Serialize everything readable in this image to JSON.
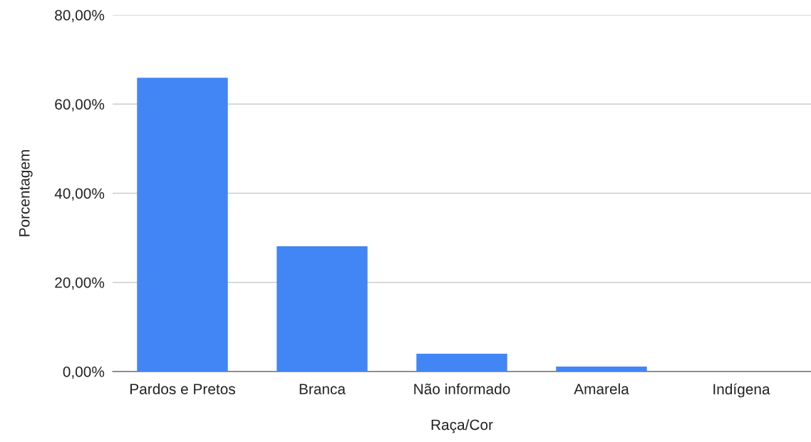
{
  "chart_data": {
    "type": "bar",
    "xlabel": "Raça/Cor",
    "ylabel": "Porcentagem",
    "categories": [
      "Pardos e Pretos",
      "Branca",
      "Não informado",
      "Amarela",
      "Indígena"
    ],
    "values": [
      65.9,
      28.1,
      4.0,
      1.1,
      0
    ],
    "color": "#4285f4",
    "ylim": [
      0,
      80
    ],
    "yticks": [
      {
        "value": 0,
        "label": "0,00%"
      },
      {
        "value": 20,
        "label": "20,00%"
      },
      {
        "value": 40,
        "label": "40,00%"
      },
      {
        "value": 60,
        "label": "60,00%"
      },
      {
        "value": 80,
        "label": "80,00%"
      }
    ],
    "grid": "y"
  }
}
